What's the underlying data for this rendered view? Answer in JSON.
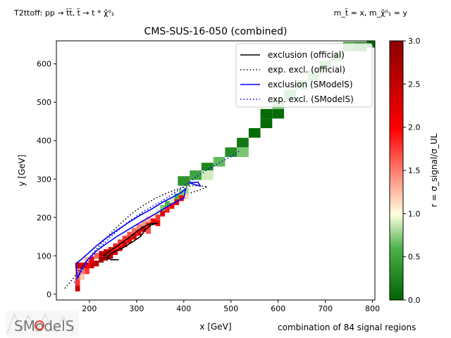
{
  "header": {
    "topo_left": "T2ttoff: pp → t̃t̃, t̃ → t * χ̃⁰₁",
    "topo_right": "m_t̃ = x, m_χ̃⁰₁ = y"
  },
  "footer": {
    "regions": "combination of 84 signal regions",
    "logo_text": "SModelS"
  },
  "colors": {
    "official": "#000000",
    "smodels": "#0000ff",
    "cmap": [
      "#006400",
      "#90ee90",
      "#ffffe0",
      "#ff0000",
      "#8b0000"
    ]
  },
  "chart_data": {
    "type": "heatmap",
    "title": "CMS-SUS-16-050 (combined)",
    "xlabel": "x [GeV]",
    "ylabel": "y [GeV]",
    "xlim": [
      130,
      805
    ],
    "ylim": [
      -15,
      660
    ],
    "xticks": [
      200,
      300,
      400,
      500,
      600,
      700,
      800
    ],
    "yticks": [
      0,
      100,
      200,
      300,
      400,
      500,
      600
    ],
    "grid": false,
    "colorbar": {
      "label": "r = σ_signal/σ_UL",
      "range": [
        0,
        3
      ],
      "ticks": [
        0.0,
        0.5,
        1.0,
        1.5,
        2.0,
        2.5,
        3.0
      ],
      "tick_labels": [
        "0.0",
        "0.5",
        "1.0",
        "1.5",
        "2.0",
        "2.5",
        "3.0"
      ]
    },
    "legend": {
      "placement": "upper right",
      "entries": [
        {
          "label": "exclusion (official)",
          "color": "#000000",
          "style": "solid"
        },
        {
          "label": "exp. excl. (official)",
          "color": "#000000",
          "style": "dotted"
        },
        {
          "label": "exclusion (SModelS)",
          "color": "#0000ff",
          "style": "solid"
        },
        {
          "label": "exp. excl. (SModelS)",
          "color": "#0000ff",
          "style": "dotted"
        }
      ]
    },
    "cells_coarse": [
      [
        400,
        295,
        0.35
      ],
      [
        425,
        310,
        0.5
      ],
      [
        450,
        330,
        0.25
      ],
      [
        450,
        310,
        0.9
      ],
      [
        475,
        345,
        0.65
      ],
      [
        500,
        370,
        0.3
      ],
      [
        525,
        395,
        0.15
      ],
      [
        525,
        370,
        0.7
      ],
      [
        550,
        420,
        0.05
      ],
      [
        575,
        445,
        0.05
      ],
      [
        575,
        470,
        0.05
      ],
      [
        600,
        470,
        0.05
      ],
      [
        600,
        495,
        0.7
      ],
      [
        625,
        520,
        0.6
      ],
      [
        650,
        545,
        0.65
      ],
      [
        675,
        570,
        0.65
      ],
      [
        700,
        595,
        0.6
      ],
      [
        725,
        620,
        0.65
      ],
      [
        750,
        645,
        0.5
      ],
      [
        775,
        645,
        0.3
      ],
      [
        800,
        655,
        0.05
      ]
    ],
    "cells_fine": [
      [
        175,
        15,
        2.5
      ],
      [
        175,
        30,
        1.8
      ],
      [
        175,
        45,
        1.6
      ],
      [
        175,
        60,
        1.5
      ],
      [
        175,
        75,
        2.5
      ],
      [
        185,
        45,
        1.2
      ],
      [
        185,
        60,
        1.5
      ],
      [
        185,
        75,
        2.2
      ],
      [
        195,
        60,
        1.8
      ],
      [
        195,
        75,
        2.0
      ],
      [
        195,
        90,
        1.3
      ],
      [
        205,
        75,
        2.4
      ],
      [
        205,
        90,
        2.0
      ],
      [
        215,
        80,
        2.6
      ],
      [
        215,
        100,
        1.6
      ],
      [
        225,
        90,
        2.8
      ],
      [
        225,
        105,
        2.6
      ],
      [
        235,
        95,
        2.8
      ],
      [
        235,
        110,
        2.4
      ],
      [
        245,
        100,
        2.5
      ],
      [
        245,
        115,
        2.2
      ],
      [
        255,
        110,
        2.2
      ],
      [
        255,
        125,
        1.9
      ],
      [
        265,
        120,
        2.2
      ],
      [
        265,
        135,
        1.8
      ],
      [
        275,
        130,
        2.4
      ],
      [
        275,
        145,
        1.8
      ],
      [
        285,
        140,
        2.3
      ],
      [
        285,
        155,
        1.7
      ],
      [
        295,
        150,
        2.4
      ],
      [
        295,
        165,
        1.6
      ],
      [
        305,
        160,
        2.2
      ],
      [
        305,
        175,
        1.5
      ],
      [
        315,
        170,
        2.6
      ],
      [
        315,
        185,
        1.4
      ],
      [
        325,
        180,
        1.9
      ],
      [
        325,
        195,
        1.3
      ],
      [
        335,
        190,
        2.0
      ],
      [
        335,
        205,
        1.1
      ],
      [
        345,
        200,
        1.8
      ],
      [
        345,
        215,
        0.9
      ],
      [
        355,
        210,
        2.3
      ],
      [
        355,
        225,
        0.7
      ],
      [
        365,
        220,
        1.9
      ],
      [
        365,
        235,
        0.6
      ],
      [
        375,
        230,
        2.0
      ],
      [
        375,
        245,
        0.9
      ],
      [
        385,
        240,
        2.1
      ],
      [
        385,
        255,
        0.6
      ],
      [
        395,
        250,
        2.0
      ],
      [
        395,
        265,
        0.7
      ],
      [
        405,
        255,
        1.2
      ],
      [
        405,
        270,
        0.8
      ],
      [
        345,
        185,
        2.0
      ],
      [
        325,
        165,
        1.7
      ]
    ],
    "series": [
      {
        "name": "exclusion (official)",
        "style": "solid",
        "x": [
          230,
          240,
          250,
          262,
          275,
          290,
          305,
          318,
          330,
          345,
          330,
          318,
          308,
          296,
          283,
          270,
          257,
          245,
          238,
          246,
          262
        ],
        "y": [
          100,
          110,
          118,
          128,
          140,
          153,
          168,
          178,
          184,
          185,
          180,
          167,
          150,
          140,
          130,
          120,
          113,
          105,
          95,
          90,
          90
        ]
      },
      {
        "name": "exp. excl. (official)",
        "style": "dotted",
        "x": [
          148,
          165,
          182,
          200,
          220,
          242,
          265,
          290,
          315,
          340,
          365,
          390,
          405,
          420,
          435,
          450,
          430,
          410
        ],
        "y": [
          15,
          40,
          68,
          95,
          125,
          155,
          183,
          210,
          232,
          250,
          264,
          275,
          280,
          283,
          282,
          280,
          270,
          262
        ]
      },
      {
        "name": "exclusion (SModelS)",
        "style": "solid",
        "x": [
          172,
          182,
          197,
          215,
          235,
          258,
          282,
          308,
          332,
          356,
          378,
          396,
          404,
          400,
          382,
          362,
          338,
          312,
          285,
          258,
          234,
          212,
          195,
          182,
          174,
          172
        ],
        "y": [
          80,
          90,
          106,
          126,
          146,
          166,
          186,
          206,
          222,
          240,
          254,
          266,
          275,
          250,
          240,
          226,
          208,
          190,
          170,
          150,
          130,
          110,
          88,
          62,
          40,
          80
        ]
      },
      {
        "name": "exclusion (SModelS)",
        "style": "solid",
        "x": [
          412,
          430,
          435,
          425,
          412
        ],
        "y": [
          290,
          292,
          282,
          285,
          290
        ]
      },
      {
        "name": "exp. excl. (SModelS)",
        "style": "dotted",
        "x": [
          168,
          190,
          215,
          245,
          280,
          315,
          350,
          390,
          420,
          450,
          480,
          505,
          520
        ],
        "y": [
          30,
          70,
          112,
          150,
          186,
          216,
          240,
          272,
          300,
          325,
          345,
          362,
          375
        ]
      }
    ]
  }
}
